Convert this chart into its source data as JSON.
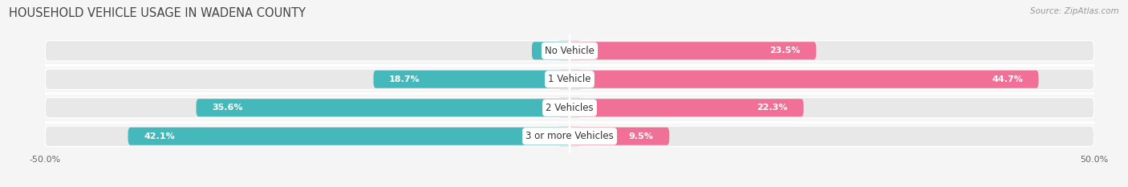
{
  "title": "HOUSEHOLD VEHICLE USAGE IN WADENA COUNTY",
  "source": "Source: ZipAtlas.com",
  "categories": [
    "No Vehicle",
    "1 Vehicle",
    "2 Vehicles",
    "3 or more Vehicles"
  ],
  "owner_values": [
    3.6,
    18.7,
    35.6,
    42.1
  ],
  "renter_values": [
    23.5,
    44.7,
    22.3,
    9.5
  ],
  "owner_color": "#45B8BC",
  "renter_color": "#F07098",
  "bar_bg_color": "#E8E8E8",
  "background_color": "#F5F5F5",
  "xlim_left": -50,
  "xlim_right": 50,
  "title_fontsize": 10.5,
  "label_fontsize": 8,
  "value_fontsize": 8,
  "legend_fontsize": 8.5,
  "source_fontsize": 7.5
}
